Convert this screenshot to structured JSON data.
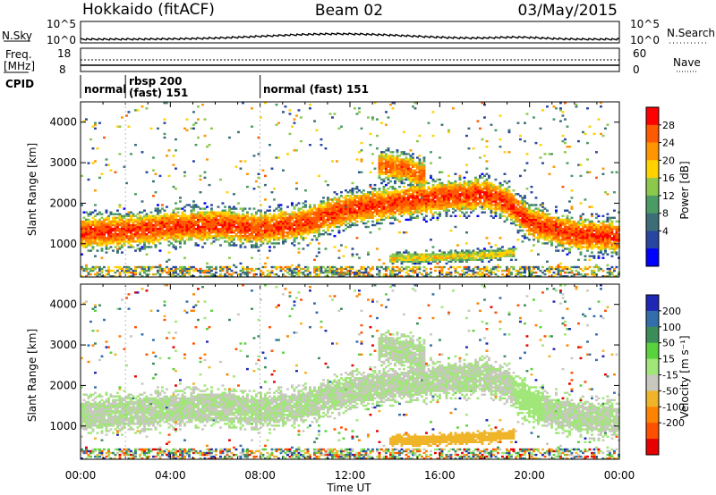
{
  "header": {
    "radar": "Hokkaido (fitACF)",
    "beam": "Beam 02",
    "date": "03/May/2015"
  },
  "top_panels": {
    "nsky_label": "N.Sky",
    "nsky_ticks": [
      "10^5",
      "10^0"
    ],
    "nsearch_label": "N.Search",
    "nsearch_ticks": [
      "10^5",
      "10^0"
    ],
    "freq_label_1": "Freq.",
    "freq_label_2": "[MHz]",
    "freq_ticks": [
      "18",
      "8"
    ],
    "nave_label": "Nave",
    "nave_ticks": [
      "60",
      "0"
    ],
    "cpid_label": "CPID",
    "cpid_segments": [
      {
        "line1": "normal",
        "line2": ""
      },
      {
        "line1": "rbsp 200",
        "line2": "(fast) 151"
      },
      {
        "line1": "normal (fast) 151",
        "line2": ""
      }
    ]
  },
  "axes": {
    "ylabel": "Slant Range [km]",
    "xlabel": "Time UT",
    "y_ticks": [
      "4000",
      "3000",
      "2000",
      "1000"
    ],
    "x_ticks": [
      "00:00",
      "04:00",
      "08:00",
      "12:00",
      "16:00",
      "20:00",
      "00:00"
    ]
  },
  "colorbars": {
    "power_label": "Power [dB]",
    "power_ticks": [
      "28",
      "24",
      "20",
      "16",
      "12",
      "8",
      "4"
    ],
    "power_colors": [
      "#ff0000",
      "#ff5a00",
      "#ff9600",
      "#ffd200",
      "#8cc84b",
      "#4b9b64",
      "#3c6e78",
      "#2846a0",
      "#0000ff"
    ],
    "velocity_label": "Velocity [m s⁻¹]",
    "velocity_ticks": [
      "200",
      "100",
      "50",
      "15",
      "-15",
      "-50",
      "-100",
      "-200"
    ],
    "velocity_colors": [
      "#1e28b4",
      "#326eaa",
      "#3c8c5a",
      "#5ad23c",
      "#a0e678",
      "#c8c8c0",
      "#f0b428",
      "#ff8200",
      "#ff5000",
      "#e60000"
    ]
  },
  "chart_data": {
    "type": "heatmap",
    "x_range_hours": [
      0,
      24
    ],
    "y_range_km": [
      180,
      4500
    ],
    "power_range_db": [
      0,
      32
    ],
    "velocity_range_ms": [
      -250,
      250
    ],
    "power_bands": [
      {
        "name": "main",
        "x": [
          0,
          2,
          4,
          6,
          8,
          10,
          12,
          14,
          16,
          18,
          19,
          20,
          22,
          24
        ],
        "y_mid": [
          1250,
          1300,
          1400,
          1450,
          1350,
          1500,
          1850,
          2000,
          2150,
          2200,
          2000,
          1500,
          1200,
          1150
        ],
        "half_width": 180,
        "power_peak": 28
      },
      {
        "name": "lower",
        "x": [
          14,
          16,
          18,
          19
        ],
        "y_mid": [
          620,
          650,
          700,
          750
        ],
        "half_width": 60,
        "power_peak": 20
      },
      {
        "name": "upper",
        "x": [
          13.5,
          14.5,
          15
        ],
        "y_mid": [
          2900,
          2850,
          2700
        ],
        "half_width": 150,
        "power_peak": 26
      }
    ],
    "velocity_ms": {
      "main_band": 0,
      "lower_band": -70,
      "ramp_20h": 25
    }
  }
}
